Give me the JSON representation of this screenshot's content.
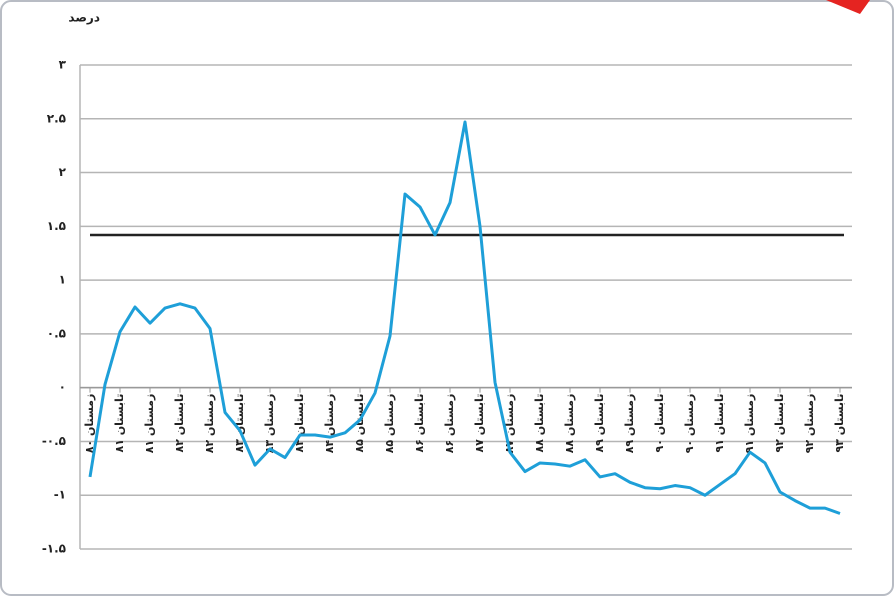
{
  "chart_data": {
    "type": "line",
    "title": "درصد",
    "categories": [
      "زمستان ۸۰",
      null,
      "تابستان ۸۱",
      null,
      "زمستان ۸۱",
      null,
      "تابستان ۸۲",
      null,
      "زمستان ۸۲",
      null,
      "تابستان ۸۳",
      null,
      "زمستان ۸۳",
      null,
      "تابستان ۸۴",
      null,
      "زمستان ۸۴",
      null,
      "تابستان ۸۵",
      null,
      "زمستان ۸۵",
      null,
      "تابستان ۸۶",
      null,
      "زمستان ۸۶",
      null,
      "تابستان ۸۷",
      null,
      "زمستان ۸۷",
      null,
      "تابستان ۸۸",
      null,
      "زمستان ۸۸",
      null,
      "تابستان ۸۹",
      null,
      "زمستان ۸۹",
      null,
      "تابستان ۹۰",
      null,
      "زمستان ۹۰",
      null,
      "تابستان ۹۱",
      null,
      "زمستان ۹۱",
      null,
      "تابستان ۹۲",
      null,
      "زمستان ۹۲",
      null,
      "تابستان ۹۳"
    ],
    "series": [
      {
        "color": "#1e9fd8",
        "values": [
          -0.83,
          0.03,
          0.52,
          0.75,
          0.6,
          0.74,
          0.78,
          0.74,
          0.55,
          -0.23,
          -0.4,
          -0.72,
          -0.57,
          -0.65,
          -0.44,
          -0.44,
          -0.46,
          -0.42,
          -0.3,
          -0.05,
          0.48,
          1.8,
          1.68,
          1.42,
          1.72,
          2.47,
          1.5,
          0.05,
          -0.6,
          -0.78,
          -0.7,
          -0.71,
          -0.73,
          -0.67,
          -0.83,
          -0.8,
          -0.88,
          -0.93,
          -0.94,
          -0.91,
          -0.93,
          -1.0,
          -0.9,
          -0.8,
          -0.6,
          -0.7,
          -0.97,
          -1.05,
          -1.12,
          -1.12,
          -1.17
        ]
      }
    ],
    "reference_line": {
      "value": 1.42,
      "color": "#222222"
    },
    "ylim": [
      -1.5,
      3
    ],
    "yticks": [
      {
        "value": -1.5,
        "label": "-۱.۵"
      },
      {
        "value": -1,
        "label": "-۱"
      },
      {
        "value": -0.5,
        "label": "-۰.۵"
      },
      {
        "value": 0,
        "label": "۰"
      },
      {
        "value": 0.5,
        "label": "۰.۵"
      },
      {
        "value": 1,
        "label": "۱"
      },
      {
        "value": 1.5,
        "label": "۱.۵"
      },
      {
        "value": 2,
        "label": "۲"
      },
      {
        "value": 2.5,
        "label": "۲.۵"
      },
      {
        "value": 3,
        "label": "۳"
      }
    ],
    "grid": true
  }
}
